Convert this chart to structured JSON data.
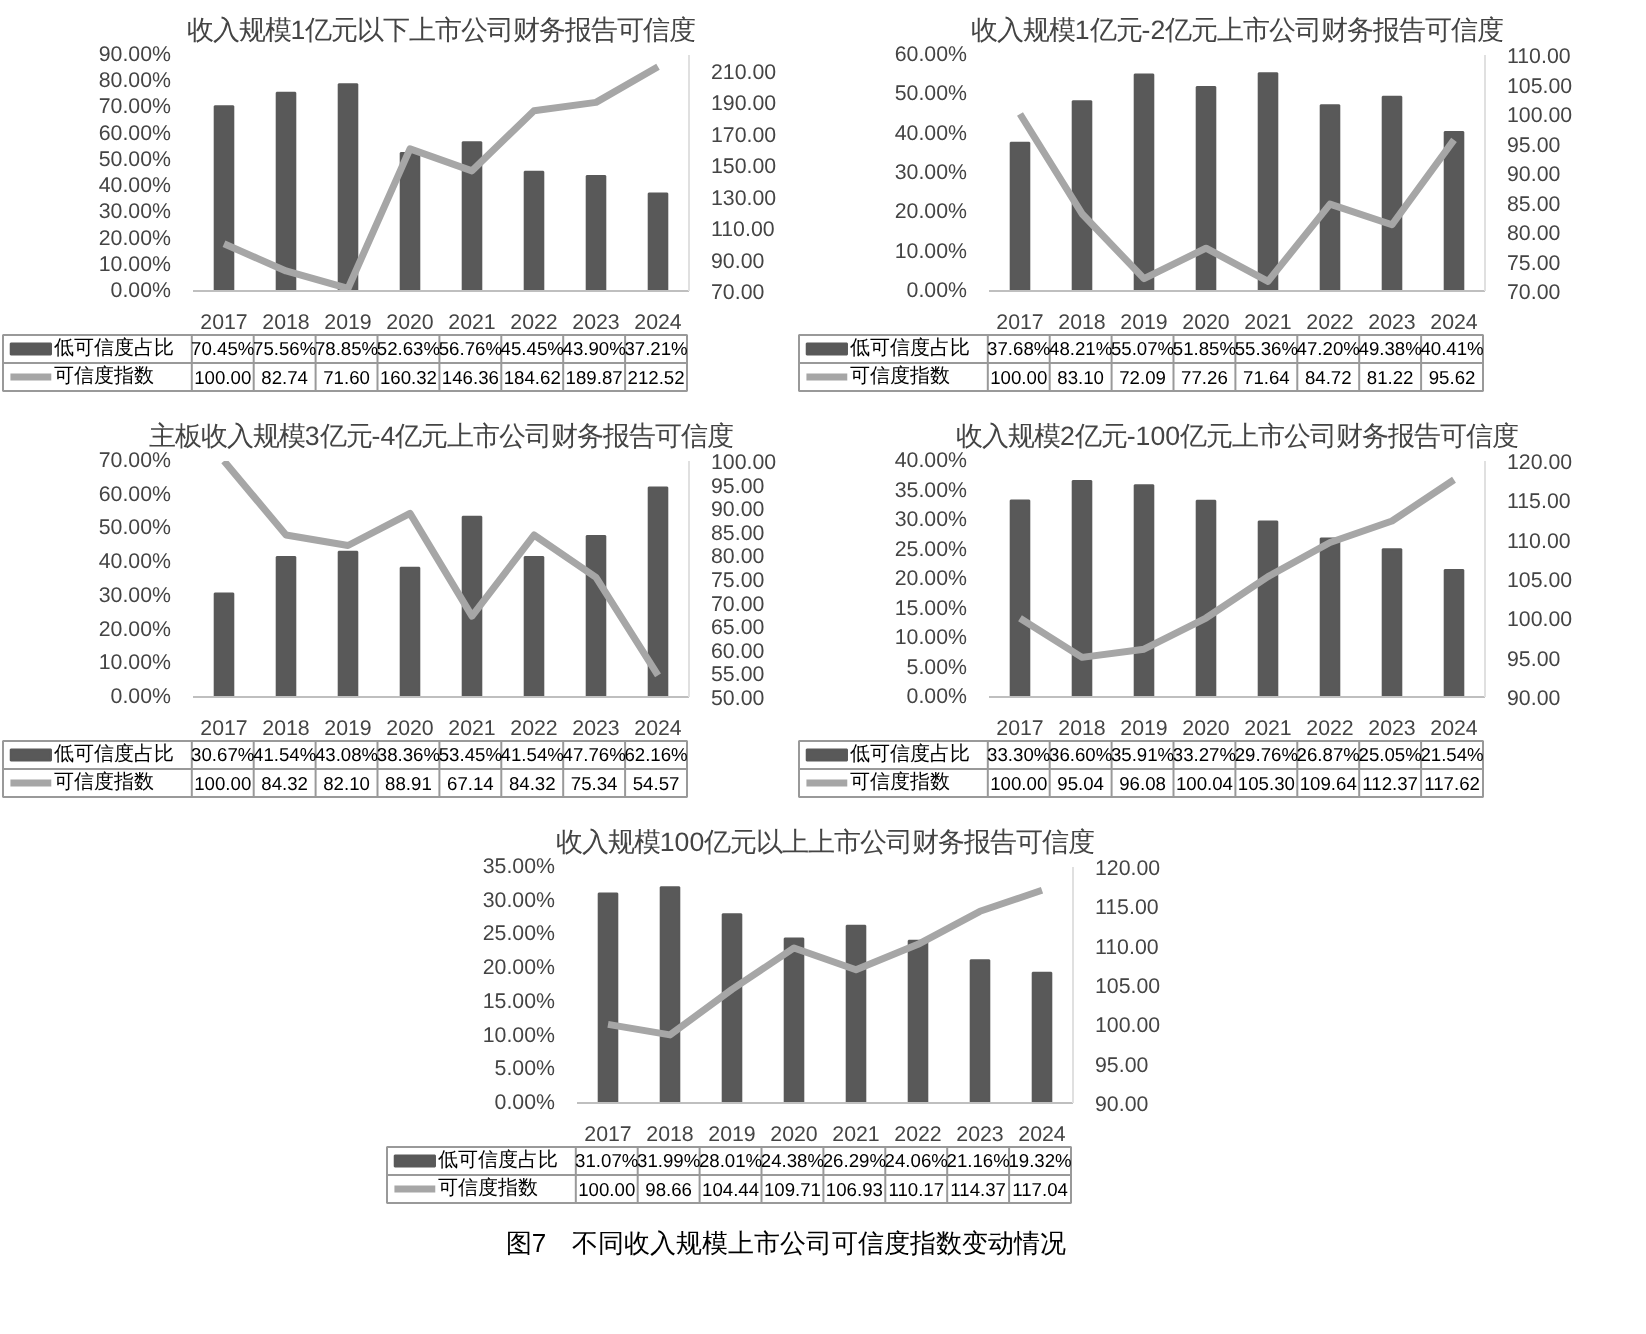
{
  "chart_data": [
    {
      "type": "bar",
      "title": "收入规模1亿元以下上市公司财务报告可信度",
      "categories": [
        "2017",
        "2018",
        "2019",
        "2020",
        "2021",
        "2022",
        "2023",
        "2024"
      ],
      "legend": "bottom",
      "marker": "none",
      "line_style": "solid",
      "ylim": [
        0,
        90
      ],
      "yticks": [
        {
          "value": 0,
          "label": "0.00%"
        },
        {
          "value": 10,
          "label": "10.00%"
        },
        {
          "value": 20,
          "label": "20.00%"
        },
        {
          "value": 30,
          "label": "30.00%"
        },
        {
          "value": 40,
          "label": "40.00%"
        },
        {
          "value": 50,
          "label": "50.00%"
        },
        {
          "value": 60,
          "label": "60.00%"
        },
        {
          "value": 70,
          "label": "70.00%"
        },
        {
          "value": 80,
          "label": "80.00%"
        },
        {
          "value": 90,
          "label": "90.00%"
        }
      ],
      "y2lim": [
        70,
        220
      ],
      "y2ticks": [
        {
          "value": 70,
          "label": "70.00"
        },
        {
          "value": 90,
          "label": "90.00"
        },
        {
          "value": 110,
          "label": "110.00"
        },
        {
          "value": 130,
          "label": "130.00"
        },
        {
          "value": 150,
          "label": "150.00"
        },
        {
          "value": 170,
          "label": "170.00"
        },
        {
          "value": 190,
          "label": "190.00"
        },
        {
          "value": 210,
          "label": "210.00"
        }
      ],
      "series": [
        {
          "name": "低可信度占比",
          "color": "#595959",
          "values": [
            70.45,
            75.56,
            78.85,
            52.63,
            56.76,
            45.45,
            43.9,
            37.21
          ],
          "value_labels": [
            "70.45%",
            "75.56%",
            "78.85%",
            "52.63%",
            "56.76%",
            "45.45%",
            "43.90%",
            "37.21%"
          ]
        },
        {
          "name": "可信度指数",
          "type": "line",
          "axis": "y2",
          "color": "#a6a6a6",
          "values": [
            100.0,
            82.74,
            71.6,
            160.32,
            146.36,
            184.62,
            189.87,
            212.52
          ],
          "value_labels": [
            "100.00",
            "82.74",
            "71.60",
            "160.32",
            "146.36",
            "184.62",
            "189.87",
            "212.52"
          ]
        }
      ]
    },
    {
      "type": "bar",
      "title": "收入规模1亿元-2亿元上市公司财务报告可信度",
      "categories": [
        "2017",
        "2018",
        "2019",
        "2020",
        "2021",
        "2022",
        "2023",
        "2024"
      ],
      "legend": "bottom",
      "marker": "none",
      "line_style": "solid",
      "ylim": [
        0,
        60
      ],
      "yticks": [
        {
          "value": 0,
          "label": "0.00%"
        },
        {
          "value": 10,
          "label": "10.00%"
        },
        {
          "value": 20,
          "label": "20.00%"
        },
        {
          "value": 30,
          "label": "30.00%"
        },
        {
          "value": 40,
          "label": "40.00%"
        },
        {
          "value": 50,
          "label": "50.00%"
        },
        {
          "value": 60,
          "label": "60.00%"
        }
      ],
      "y2lim": [
        70,
        110
      ],
      "y2ticks": [
        {
          "value": 70,
          "label": "70.00"
        },
        {
          "value": 75,
          "label": "75.00"
        },
        {
          "value": 80,
          "label": "80.00"
        },
        {
          "value": 85,
          "label": "85.00"
        },
        {
          "value": 90,
          "label": "90.00"
        },
        {
          "value": 95,
          "label": "95.00"
        },
        {
          "value": 100,
          "label": "100.00"
        },
        {
          "value": 105,
          "label": "105.00"
        },
        {
          "value": 110,
          "label": "110.00"
        }
      ],
      "series": [
        {
          "name": "低可信度占比",
          "color": "#595959",
          "values": [
            37.68,
            48.21,
            55.07,
            51.85,
            55.36,
            47.2,
            49.38,
            40.41
          ],
          "value_labels": [
            "37.68%",
            "48.21%",
            "55.07%",
            "51.85%",
            "55.36%",
            "47.20%",
            "49.38%",
            "40.41%"
          ]
        },
        {
          "name": "可信度指数",
          "type": "line",
          "axis": "y2",
          "color": "#a6a6a6",
          "values": [
            100.0,
            83.1,
            72.09,
            77.26,
            71.64,
            84.72,
            81.22,
            95.62
          ],
          "value_labels": [
            "100.00",
            "83.10",
            "72.09",
            "77.26",
            "71.64",
            "84.72",
            "81.22",
            "95.62"
          ]
        }
      ]
    },
    {
      "type": "bar",
      "title": "主板收入规模3亿元-4亿元上市公司财务报告可信度",
      "categories": [
        "2017",
        "2018",
        "2019",
        "2020",
        "2021",
        "2022",
        "2023",
        "2024"
      ],
      "legend": "bottom",
      "marker": "none",
      "line_style": "solid",
      "ylim": [
        0,
        70
      ],
      "yticks": [
        {
          "value": 0,
          "label": "0.00%"
        },
        {
          "value": 10,
          "label": "10.00%"
        },
        {
          "value": 20,
          "label": "20.00%"
        },
        {
          "value": 30,
          "label": "30.00%"
        },
        {
          "value": 40,
          "label": "40.00%"
        },
        {
          "value": 50,
          "label": "50.00%"
        },
        {
          "value": 60,
          "label": "60.00%"
        },
        {
          "value": 70,
          "label": "70.00%"
        }
      ],
      "y2lim": [
        50,
        100
      ],
      "y2ticks": [
        {
          "value": 50,
          "label": "50.00"
        },
        {
          "value": 55,
          "label": "55.00"
        },
        {
          "value": 60,
          "label": "60.00"
        },
        {
          "value": 65,
          "label": "65.00"
        },
        {
          "value": 70,
          "label": "70.00"
        },
        {
          "value": 75,
          "label": "75.00"
        },
        {
          "value": 80,
          "label": "80.00"
        },
        {
          "value": 85,
          "label": "85.00"
        },
        {
          "value": 90,
          "label": "90.00"
        },
        {
          "value": 95,
          "label": "95.00"
        },
        {
          "value": 100,
          "label": "100.00"
        }
      ],
      "series": [
        {
          "name": "低可信度占比",
          "color": "#595959",
          "values": [
            30.67,
            41.54,
            43.08,
            38.36,
            53.45,
            41.54,
            47.76,
            62.16
          ],
          "value_labels": [
            "30.67%",
            "41.54%",
            "43.08%",
            "38.36%",
            "53.45%",
            "41.54%",
            "47.76%",
            "62.16%"
          ]
        },
        {
          "name": "可信度指数",
          "type": "line",
          "axis": "y2",
          "color": "#a6a6a6",
          "values": [
            100.0,
            84.32,
            82.1,
            88.91,
            67.14,
            84.32,
            75.34,
            54.57
          ],
          "value_labels": [
            "100.00",
            "84.32",
            "82.10",
            "88.91",
            "67.14",
            "84.32",
            "75.34",
            "54.57"
          ]
        }
      ]
    },
    {
      "type": "bar",
      "title": "收入规模2亿元-100亿元上市公司财务报告可信度",
      "categories": [
        "2017",
        "2018",
        "2019",
        "2020",
        "2021",
        "2022",
        "2023",
        "2024"
      ],
      "legend": "bottom",
      "marker": "none",
      "line_style": "solid",
      "ylim": [
        0,
        40
      ],
      "yticks": [
        {
          "value": 0,
          "label": "0.00%"
        },
        {
          "value": 5,
          "label": "5.00%"
        },
        {
          "value": 10,
          "label": "10.00%"
        },
        {
          "value": 15,
          "label": "15.00%"
        },
        {
          "value": 20,
          "label": "20.00%"
        },
        {
          "value": 25,
          "label": "25.00%"
        },
        {
          "value": 30,
          "label": "30.00%"
        },
        {
          "value": 35,
          "label": "35.00%"
        },
        {
          "value": 40,
          "label": "40.00%"
        }
      ],
      "y2lim": [
        90,
        120
      ],
      "y2ticks": [
        {
          "value": 90,
          "label": "90.00"
        },
        {
          "value": 95,
          "label": "95.00"
        },
        {
          "value": 100,
          "label": "100.00"
        },
        {
          "value": 105,
          "label": "105.00"
        },
        {
          "value": 110,
          "label": "110.00"
        },
        {
          "value": 115,
          "label": "115.00"
        },
        {
          "value": 120,
          "label": "120.00"
        }
      ],
      "series": [
        {
          "name": "低可信度占比",
          "color": "#595959",
          "values": [
            33.3,
            36.6,
            35.91,
            33.27,
            29.76,
            26.87,
            25.05,
            21.54
          ],
          "value_labels": [
            "33.30%",
            "36.60%",
            "35.91%",
            "33.27%",
            "29.76%",
            "26.87%",
            "25.05%",
            "21.54%"
          ]
        },
        {
          "name": "可信度指数",
          "type": "line",
          "axis": "y2",
          "color": "#a6a6a6",
          "values": [
            100.0,
            95.04,
            96.08,
            100.04,
            105.3,
            109.64,
            112.37,
            117.62
          ],
          "value_labels": [
            "100.00",
            "95.04",
            "96.08",
            "100.04",
            "105.30",
            "109.64",
            "112.37",
            "117.62"
          ]
        }
      ]
    },
    {
      "type": "bar",
      "title": "收入规模100亿元以上上市公司财务报告可信度",
      "categories": [
        "2017",
        "2018",
        "2019",
        "2020",
        "2021",
        "2022",
        "2023",
        "2024"
      ],
      "legend": "bottom",
      "marker": "none",
      "line_style": "solid",
      "ylim": [
        0,
        35
      ],
      "yticks": [
        {
          "value": 0,
          "label": "0.00%"
        },
        {
          "value": 5,
          "label": "5.00%"
        },
        {
          "value": 10,
          "label": "10.00%"
        },
        {
          "value": 15,
          "label": "15.00%"
        },
        {
          "value": 20,
          "label": "20.00%"
        },
        {
          "value": 25,
          "label": "25.00%"
        },
        {
          "value": 30,
          "label": "30.00%"
        },
        {
          "value": 35,
          "label": "35.00%"
        }
      ],
      "y2lim": [
        90,
        120
      ],
      "y2ticks": [
        {
          "value": 90,
          "label": "90.00"
        },
        {
          "value": 95,
          "label": "95.00"
        },
        {
          "value": 100,
          "label": "100.00"
        },
        {
          "value": 105,
          "label": "105.00"
        },
        {
          "value": 110,
          "label": "110.00"
        },
        {
          "value": 115,
          "label": "115.00"
        },
        {
          "value": 120,
          "label": "120.00"
        }
      ],
      "annotations": [
        "图7　不同收入规模上市公司可信度指数变动情况"
      ],
      "series": [
        {
          "name": "低可信度占比",
          "color": "#595959",
          "values": [
            31.07,
            31.99,
            28.01,
            24.38,
            26.29,
            24.06,
            21.16,
            19.32
          ],
          "value_labels": [
            "31.07%",
            "31.99%",
            "28.01%",
            "24.38%",
            "26.29%",
            "24.06%",
            "21.16%",
            "19.32%"
          ]
        },
        {
          "name": "可信度指数",
          "type": "line",
          "axis": "y2",
          "color": "#a6a6a6",
          "values": [
            100.0,
            98.66,
            104.44,
            109.71,
            106.93,
            110.17,
            114.37,
            117.04
          ],
          "value_labels": [
            "100.00",
            "98.66",
            "104.44",
            "109.71",
            "106.93",
            "110.17",
            "114.37",
            "117.04"
          ]
        }
      ]
    }
  ]
}
